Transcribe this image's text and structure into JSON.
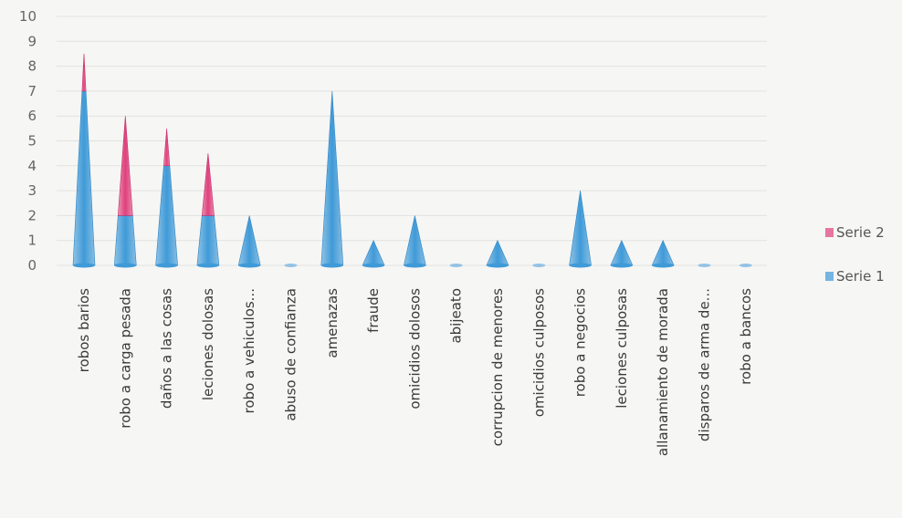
{
  "chart_data": {
    "type": "bar",
    "stacked": true,
    "bar_shape": "cone",
    "categories": [
      "robos barios",
      "robo a carga pesada",
      "daños a las cosas",
      "leciones dolosas",
      "robo a vehiculos...",
      "abuso de confianza",
      "amenazas",
      "fraude",
      "omicidios dolosos",
      "abijeato",
      "corrupcion de menores",
      "omicidios culposos",
      "robo a negocios",
      "leciones culposas",
      "allanamiento de morada",
      "disparos de arma de...",
      "robo a bancos"
    ],
    "series": [
      {
        "name": "Serie 1",
        "color": "#3f9ad8",
        "values": [
          7,
          2,
          4,
          2,
          2,
          0,
          7,
          1,
          2,
          0,
          1,
          0,
          3,
          1,
          1,
          0,
          0
        ]
      },
      {
        "name": "Serie 2",
        "color": "#e0407c",
        "values": [
          1.5,
          4,
          1.5,
          2.5,
          0,
          0,
          0,
          0,
          0,
          0,
          0,
          0,
          0,
          0,
          0,
          0,
          0
        ]
      }
    ],
    "ylim": [
      0,
      10
    ],
    "yticks": [
      0,
      1,
      2,
      3,
      4,
      5,
      6,
      7,
      8,
      9,
      10
    ],
    "grid": true,
    "legend_position": "right",
    "title": "",
    "xlabel": "",
    "ylabel": ""
  }
}
